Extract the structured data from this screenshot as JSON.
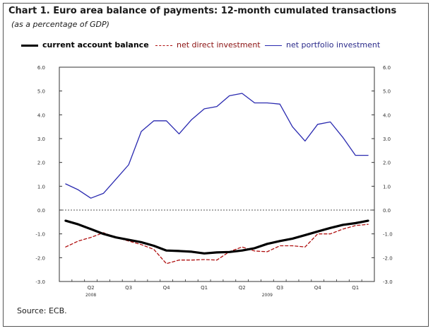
{
  "title": "Chart 1. Euro area balance of payments: 12-month cumulated transactions",
  "subtitle": "(as a percentage of GDP)",
  "source": "Source: ECB.",
  "colors": {
    "current_account": "#000000",
    "direct_investment": "#b01010",
    "portfolio_investment": "#2a2ab0"
  },
  "legend": [
    {
      "label": "current account balance",
      "style": "solid-thick",
      "color": "#000000"
    },
    {
      "label": "net direct investment",
      "style": "dashed",
      "color": "#b01010"
    },
    {
      "label": "net portfolio investment",
      "style": "solid",
      "color": "#2a2ab0"
    }
  ],
  "chart_data": {
    "type": "line",
    "title": "Chart 1. Euro area balance of payments: 12-month cumulated transactions",
    "subtitle": "(as a percentage of GDP)",
    "ylim": [
      -3.0,
      6.0
    ],
    "yticks": [
      "6.0",
      "5.0",
      "4.0",
      "3.0",
      "2.0",
      "1.0",
      "0.0",
      "-1.0",
      "-2.0",
      "-3.0"
    ],
    "ytick_values": [
      6,
      5,
      4,
      3,
      2,
      1,
      0,
      -1,
      -2,
      -3
    ],
    "x_quarter_labels": [
      {
        "label": "Q2",
        "pos": 2.5
      },
      {
        "label": "Q3",
        "pos": 5.5
      },
      {
        "label": "Q4",
        "pos": 8.5
      },
      {
        "label": "Q1",
        "pos": 11.5
      },
      {
        "label": "Q2",
        "pos": 14.5
      },
      {
        "label": "Q3",
        "pos": 17.5
      },
      {
        "label": "Q4",
        "pos": 20.5
      },
      {
        "label": "Q1",
        "pos": 23.5
      }
    ],
    "x_year_labels": [
      {
        "label": "2008",
        "pos": 2.5
      },
      {
        "label": "2009",
        "pos": 16.5
      }
    ],
    "n_points": 25,
    "zero_line": "dashed",
    "grid": false,
    "legend_position": "top",
    "series": [
      {
        "name": "current account balance",
        "style": "solid-thick",
        "values": [
          -0.45,
          -0.6,
          -0.8,
          -1.0,
          -1.15,
          -1.25,
          -1.35,
          -1.5,
          -1.7,
          -1.72,
          -1.75,
          -1.82,
          -1.78,
          -1.76,
          -1.7,
          -1.6,
          -1.42,
          -1.3,
          -1.2,
          -1.05,
          -0.9,
          -0.75,
          -0.62,
          -0.55,
          -0.45
        ]
      },
      {
        "name": "net direct investment",
        "style": "dashed",
        "values": [
          -1.55,
          -1.3,
          -1.15,
          -0.95,
          -1.15,
          -1.3,
          -1.45,
          -1.65,
          -2.25,
          -2.1,
          -2.1,
          -2.08,
          -2.1,
          -1.75,
          -1.55,
          -1.72,
          -1.75,
          -1.5,
          -1.5,
          -1.55,
          -1.0,
          -1.0,
          -0.8,
          -0.65,
          -0.6
        ]
      },
      {
        "name": "net portfolio investment",
        "style": "solid",
        "values": [
          1.1,
          0.85,
          0.5,
          0.7,
          1.3,
          1.9,
          3.3,
          3.75,
          3.75,
          3.2,
          3.8,
          4.25,
          4.35,
          4.8,
          4.9,
          4.5,
          4.5,
          4.45,
          3.5,
          2.9,
          3.6,
          3.7,
          3.05,
          2.3,
          2.3
        ]
      }
    ]
  }
}
